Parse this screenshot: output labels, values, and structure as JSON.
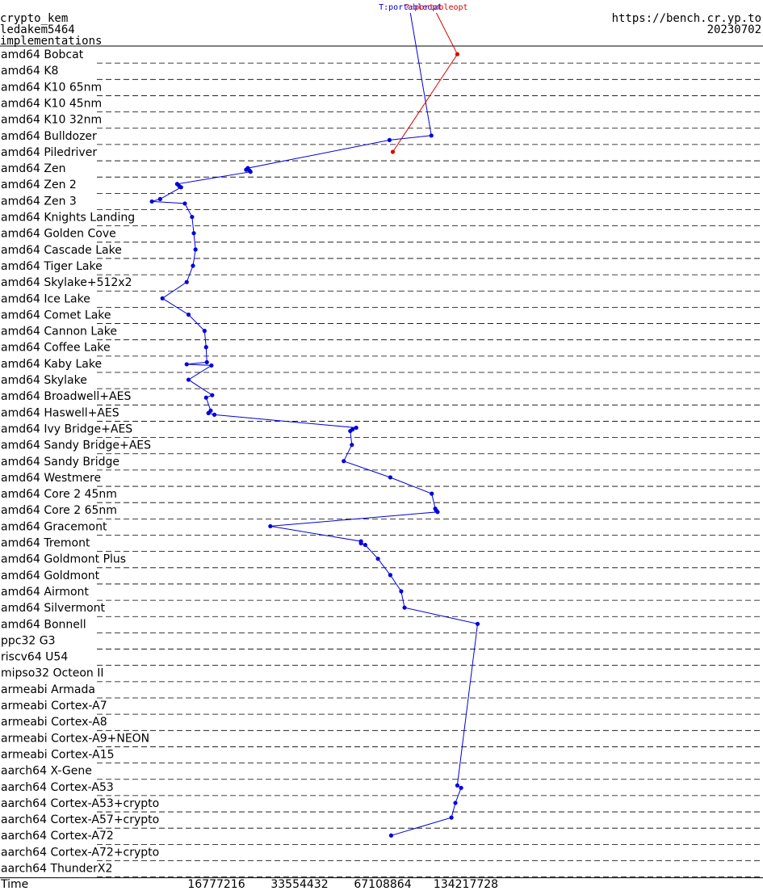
{
  "header": {
    "line1": "crypto_kem",
    "line2": "ledakem5464",
    "line3": "implementations",
    "site": "https://bench.cr.yp.to",
    "date": "20230702"
  },
  "colors": {
    "series_blue": "#0000dd",
    "series_red": "#dd0000",
    "grid": "#000000"
  },
  "chart_data": {
    "type": "line",
    "xlabel": "Time",
    "x_scale": "log2",
    "x_ticks": [
      16777216,
      33554432,
      67108864,
      134217728
    ],
    "categories": [
      "amd64 Bobcat",
      "amd64 K8",
      "amd64 K10 65nm",
      "amd64 K10 45nm",
      "amd64 K10 32nm",
      "amd64 Bulldozer",
      "amd64 Piledriver",
      "amd64 Zen",
      "amd64 Zen 2",
      "amd64 Zen 3",
      "amd64 Knights Landing",
      "amd64 Golden Cove",
      "amd64 Cascade Lake",
      "amd64 Tiger Lake",
      "amd64 Skylake+512x2",
      "amd64 Ice Lake",
      "amd64 Comet Lake",
      "amd64 Cannon Lake",
      "amd64 Coffee Lake",
      "amd64 Kaby Lake",
      "amd64 Skylake",
      "amd64 Broadwell+AES",
      "amd64 Haswell+AES",
      "amd64 Ivy Bridge+AES",
      "amd64 Sandy Bridge+AES",
      "amd64 Sandy Bridge",
      "amd64 Westmere",
      "amd64 Core 2 45nm",
      "amd64 Core 2 65nm",
      "amd64 Gracemont",
      "amd64 Tremont",
      "amd64 Goldmont Plus",
      "amd64 Goldmont",
      "amd64 Airmont",
      "amd64 Silvermont",
      "amd64 Bonnell",
      "ppc32 G3",
      "riscv64 U54",
      "mipso32 Octeon II",
      "armeabi Armada",
      "armeabi Cortex-A7",
      "armeabi Cortex-A8",
      "armeabi Cortex-A9+NEON",
      "armeabi Cortex-A15",
      "aarch64 X-Gene",
      "aarch64 Cortex-A53",
      "aarch64 Cortex-A53+crypto",
      "aarch64 Cortex-A57+crypto",
      "aarch64 Cortex-A72",
      "aarch64 Cortex-A72+crypto",
      "aarch64 ThunderX2"
    ],
    "series": [
      {
        "name": "T:portableopt",
        "color": "#0000dd",
        "points": [
          {
            "row": 5,
            "sub": 0.0,
            "x": 100663296
          },
          {
            "row": 5,
            "sub": 0.55,
            "x": 71000000
          },
          {
            "row": 7,
            "sub": 0.0,
            "x": 21800000
          },
          {
            "row": 7,
            "sub": 0.2,
            "x": 21500000
          },
          {
            "row": 7,
            "sub": 0.3,
            "x": 22100000
          },
          {
            "row": 7,
            "sub": 0.45,
            "x": 22300000
          },
          {
            "row": 8,
            "sub": -0.05,
            "x": 12100000
          },
          {
            "row": 8,
            "sub": 0.2,
            "x": 12300000
          },
          {
            "row": 8,
            "sub": 0.35,
            "x": 12500000
          },
          {
            "row": 9,
            "sub": -0.2,
            "x": 10500000
          },
          {
            "row": 9,
            "sub": 0.1,
            "x": 9800000
          },
          {
            "row": 9,
            "sub": 0.35,
            "x": 12900000
          },
          {
            "row": 10,
            "sub": 0.0,
            "x": 13700000
          },
          {
            "row": 11,
            "sub": 0.0,
            "x": 13900000
          },
          {
            "row": 12,
            "sub": 0.0,
            "x": 14100000
          },
          {
            "row": 13,
            "sub": 0.0,
            "x": 13800000
          },
          {
            "row": 14,
            "sub": 0.0,
            "x": 13100000
          },
          {
            "row": 15,
            "sub": 0.0,
            "x": 10700000
          },
          {
            "row": 16,
            "sub": 0.0,
            "x": 13300000
          },
          {
            "row": 17,
            "sub": 0.0,
            "x": 15200000
          },
          {
            "row": 18,
            "sub": 0.0,
            "x": 15400000
          },
          {
            "row": 19,
            "sub": -0.15,
            "x": 15500000
          },
          {
            "row": 19,
            "sub": 0.1,
            "x": 13100000
          },
          {
            "row": 19,
            "sub": 0.25,
            "x": 16100000
          },
          {
            "row": 20,
            "sub": 0.0,
            "x": 13300000
          },
          {
            "row": 21,
            "sub": -0.1,
            "x": 16200000
          },
          {
            "row": 21,
            "sub": 0.2,
            "x": 15400000
          },
          {
            "row": 22,
            "sub": -0.2,
            "x": 16000000
          },
          {
            "row": 22,
            "sub": 0.1,
            "x": 15700000
          },
          {
            "row": 22,
            "sub": 0.3,
            "x": 16500000
          },
          {
            "row": 23,
            "sub": -0.1,
            "x": 53800000
          },
          {
            "row": 23,
            "sub": 0.1,
            "x": 52200000
          },
          {
            "row": 23,
            "sub": 0.3,
            "x": 51200000
          },
          {
            "row": 24,
            "sub": 0.0,
            "x": 51900000
          },
          {
            "row": 25,
            "sub": 0.0,
            "x": 48500000
          },
          {
            "row": 26,
            "sub": 0.0,
            "x": 71500000
          },
          {
            "row": 27,
            "sub": 0.0,
            "x": 101000000
          },
          {
            "row": 28,
            "sub": -0.15,
            "x": 104000000
          },
          {
            "row": 28,
            "sub": 0.1,
            "x": 105000000
          },
          {
            "row": 28,
            "sub": 0.25,
            "x": 106000000
          },
          {
            "row": 29,
            "sub": 0.0,
            "x": 26300000
          },
          {
            "row": 30,
            "sub": -0.15,
            "x": 56000000
          },
          {
            "row": 30,
            "sub": 0.1,
            "x": 56000000
          },
          {
            "row": 30,
            "sub": 0.3,
            "x": 58000000
          },
          {
            "row": 31,
            "sub": 0.0,
            "x": 64500000
          },
          {
            "row": 32,
            "sub": 0.0,
            "x": 71500000
          },
          {
            "row": 33,
            "sub": 0.0,
            "x": 78300000
          },
          {
            "row": 34,
            "sub": 0.0,
            "x": 80500000
          },
          {
            "row": 35,
            "sub": 0.0,
            "x": 148000000
          },
          {
            "row": 45,
            "sub": -0.15,
            "x": 125000000
          },
          {
            "row": 45,
            "sub": 0.15,
            "x": 129000000
          },
          {
            "row": 46,
            "sub": 0.0,
            "x": 123000000
          },
          {
            "row": 47,
            "sub": -0.2,
            "x": 119000000
          },
          {
            "row": 48,
            "sub": 0.0,
            "x": 72000000
          }
        ]
      },
      {
        "name": "?:portableopt",
        "color": "#dd0000",
        "points": [
          {
            "row": 0,
            "sub": 0.0,
            "x": 125000000
          },
          {
            "row": 6,
            "sub": 0.0,
            "x": 73000000
          }
        ]
      }
    ]
  }
}
